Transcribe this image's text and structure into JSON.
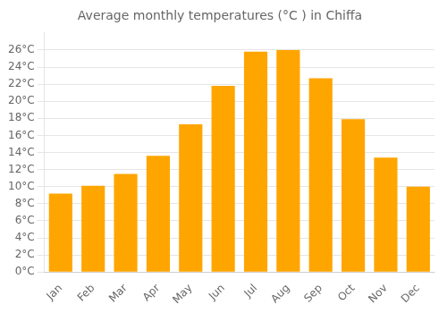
{
  "chart_data": {
    "type": "bar",
    "title": "Average monthly temperatures (°C ) in Chiffa",
    "categories": [
      "Jan",
      "Feb",
      "Mar",
      "Apr",
      "May",
      "Jun",
      "Jul",
      "Aug",
      "Sep",
      "Oct",
      "Nov",
      "Dec"
    ],
    "values": [
      9.2,
      10.1,
      11.5,
      13.6,
      17.3,
      21.8,
      25.8,
      26.0,
      22.7,
      17.9,
      13.4,
      10.0
    ],
    "color": "#FFA500",
    "ylim": [
      0,
      28
    ],
    "yticks": [
      {
        "value": 0,
        "label": "0°C"
      },
      {
        "value": 2,
        "label": "2°C"
      },
      {
        "value": 4,
        "label": "4°C"
      },
      {
        "value": 6,
        "label": "6°C"
      },
      {
        "value": 8,
        "label": "8°C"
      },
      {
        "value": 10,
        "label": "10°C"
      },
      {
        "value": 12,
        "label": "12°C"
      },
      {
        "value": 14,
        "label": "14°C"
      },
      {
        "value": 16,
        "label": "16°C"
      },
      {
        "value": 18,
        "label": "18°C"
      },
      {
        "value": 20,
        "label": "20°C"
      },
      {
        "value": 22,
        "label": "22°C"
      },
      {
        "value": 24,
        "label": "24°C"
      },
      {
        "value": 26,
        "label": "26°C"
      }
    ],
    "grid": true
  }
}
